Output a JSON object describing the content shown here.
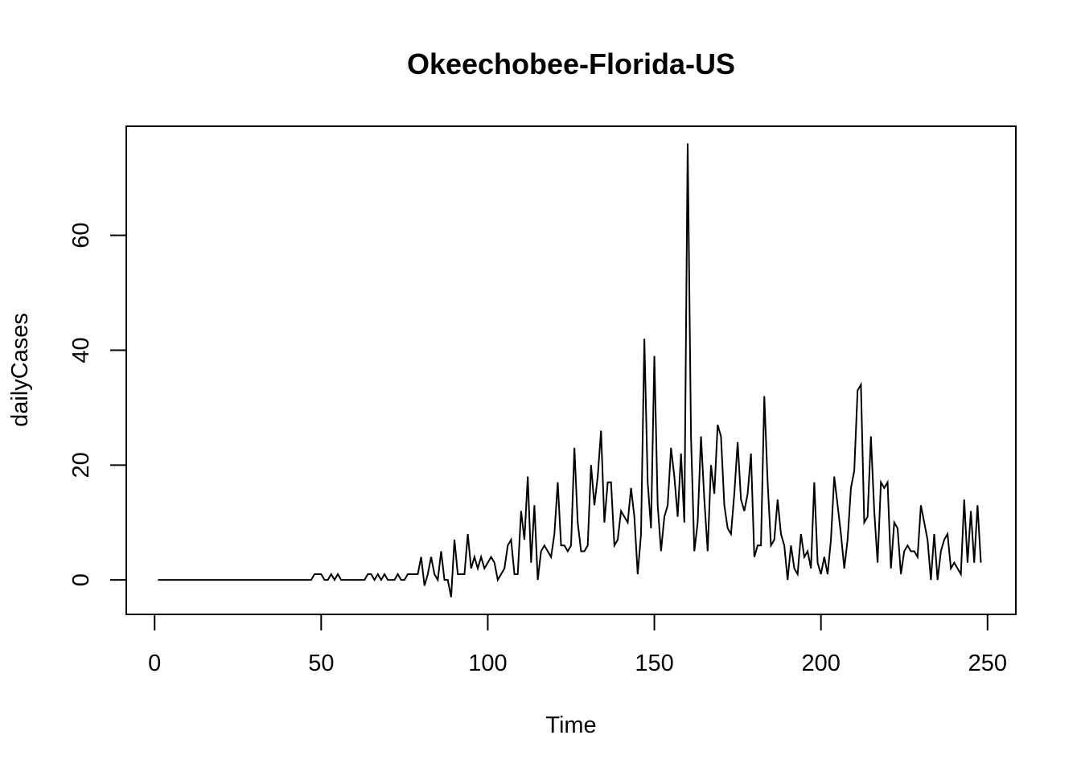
{
  "chart_data": {
    "type": "line",
    "title": "Okeechobee-Florida-US",
    "xlabel": "Time",
    "ylabel": "dailyCases",
    "xlim": [
      -8.5,
      258.5
    ],
    "ylim": [
      -6,
      79
    ],
    "x_ticks": [
      0,
      50,
      100,
      150,
      200,
      250
    ],
    "y_ticks": [
      0,
      20,
      40,
      60
    ],
    "x_tick_labels": [
      "0",
      "50",
      "100",
      "150",
      "200",
      "250"
    ],
    "y_tick_labels": [
      "0",
      "20",
      "40",
      "60"
    ],
    "grid": false,
    "series": [
      {
        "x_start": 1,
        "values": [
          0,
          0,
          0,
          0,
          0,
          0,
          0,
          0,
          0,
          0,
          0,
          0,
          0,
          0,
          0,
          0,
          0,
          0,
          0,
          0,
          0,
          0,
          0,
          0,
          0,
          0,
          0,
          0,
          0,
          0,
          0,
          0,
          0,
          0,
          0,
          0,
          0,
          0,
          0,
          0,
          0,
          0,
          0,
          0,
          0,
          0,
          0,
          1,
          1,
          1,
          0,
          0,
          1,
          0,
          1,
          0,
          0,
          0,
          0,
          0,
          0,
          0,
          0,
          1,
          1,
          0,
          1,
          0,
          1,
          0,
          0,
          0,
          1,
          0,
          0,
          1,
          1,
          1,
          1,
          4,
          -1,
          1,
          4,
          1,
          0,
          5,
          0,
          0,
          -3,
          7,
          1,
          1,
          1,
          8,
          2,
          4,
          2,
          4,
          2,
          3,
          4,
          3,
          0,
          1,
          2,
          6,
          7,
          1,
          1,
          12,
          7,
          18,
          3,
          13,
          0,
          5,
          6,
          5,
          4,
          8,
          17,
          6,
          6,
          5,
          6,
          23,
          10,
          5,
          5,
          6,
          20,
          13,
          18,
          26,
          10,
          17,
          17,
          6,
          7,
          12,
          11,
          10,
          16,
          11,
          1,
          8,
          42,
          17,
          9,
          39,
          13,
          5,
          11,
          13,
          23,
          18,
          11,
          22,
          10,
          76,
          25,
          5,
          10,
          25,
          14,
          5,
          20,
          15,
          27,
          25,
          13,
          9,
          8,
          15,
          24,
          14,
          12,
          15,
          22,
          4,
          6,
          6,
          32,
          17,
          6,
          7,
          14,
          8,
          6,
          0,
          6,
          2,
          1,
          8,
          4,
          5,
          2,
          17,
          3,
          1,
          4,
          1,
          7,
          18,
          13,
          8,
          2,
          7,
          16,
          19,
          33,
          34,
          10,
          11,
          25,
          12,
          3,
          17,
          16,
          17,
          2,
          10,
          9,
          1,
          5,
          6,
          5,
          5,
          4,
          13,
          10,
          7,
          0,
          8,
          0,
          5,
          7,
          8,
          2,
          3,
          2,
          1,
          14,
          3,
          12,
          3,
          13,
          3
        ]
      }
    ]
  }
}
